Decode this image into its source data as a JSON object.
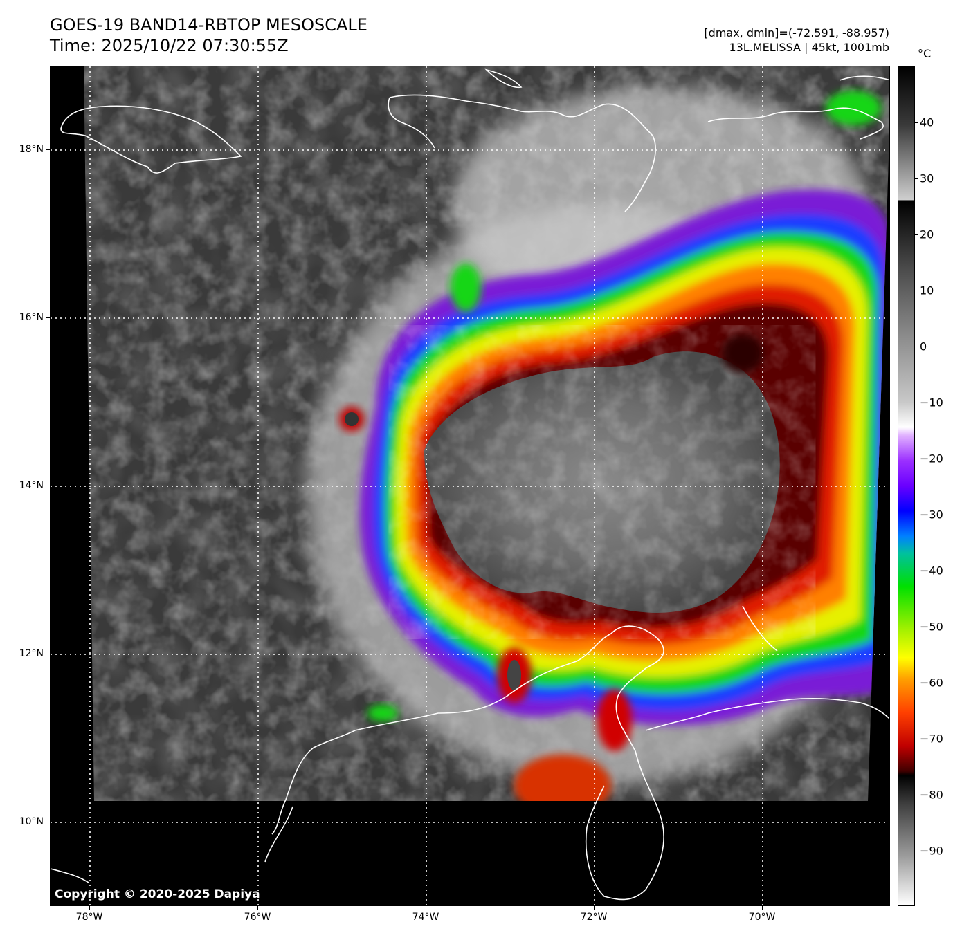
{
  "header": {
    "title_line1": "GOES-19 BAND14-RBTOP MESOSCALE",
    "title_line2": "Time: 2025/10/22 07:30:55Z",
    "range_text": "[dmax, dmin]=(-72.591, -88.957)",
    "storm_text": "13L.MELISSA | 45kt, 1001mb"
  },
  "map": {
    "copyright": "Copyright © 2020-2025 Dapiya",
    "lat_labels": [
      "18°N",
      "16°N",
      "14°N",
      "12°N",
      "10°N"
    ],
    "lon_labels": [
      "78°W",
      "76°W",
      "74°W",
      "72°W",
      "70°W"
    ]
  },
  "colorbar": {
    "unit": "°C",
    "labels": [
      "40",
      "30",
      "20",
      "10",
      "0",
      "−10",
      "−20",
      "−30",
      "−40",
      "−50",
      "−60",
      "−70",
      "−80",
      "−90"
    ],
    "range": [
      -100,
      49
    ]
  },
  "colors": {
    "coastline": "#ffffff",
    "grid": "#ffffff",
    "background_cloud": "#3a3a3a"
  }
}
